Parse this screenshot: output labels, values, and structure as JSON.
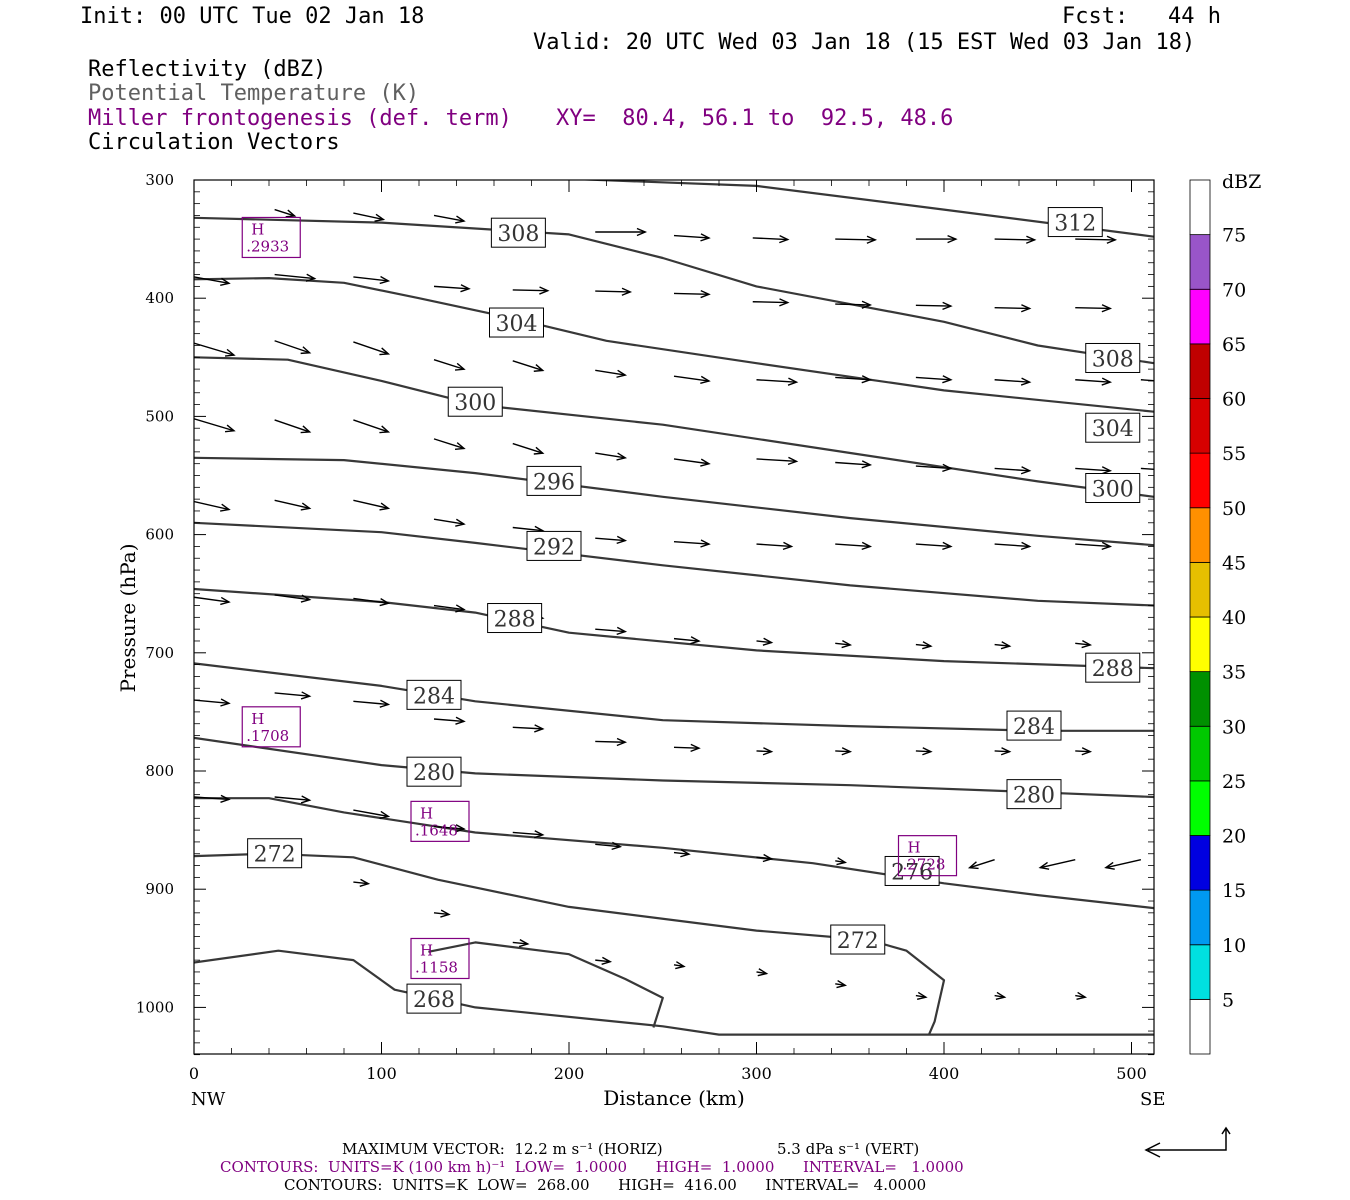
{
  "header": {
    "init": "Init: 00 UTC Tue 02 Jan 18",
    "fcst": "Fcst:   44 h",
    "valid": "Valid: 20 UTC Wed 03 Jan 18 (15 EST Wed 03 Jan 18)"
  },
  "fields": {
    "reflectivity": "Reflectivity (dBZ)",
    "theta": "Potential Temperature (K)",
    "frontogenesis": "Miller frontogenesis (def. term)",
    "xy": "XY=  80.4, 56.1 to  92.5, 48.6",
    "vectors": "Circulation Vectors"
  },
  "colors": {
    "contour": "#383838",
    "purple": "#800080",
    "grey": "#606060"
  },
  "colorbar": {
    "unit": "dBZ",
    "labels": [
      "5",
      "10",
      "15",
      "20",
      "25",
      "30",
      "35",
      "40",
      "45",
      "50",
      "55",
      "60",
      "65",
      "70",
      "75"
    ],
    "colors": [
      "#ffffff",
      "#00e0e0",
      "#0099f0",
      "#0000e0",
      "#00ff00",
      "#00c800",
      "#009000",
      "#ffff00",
      "#e6bf00",
      "#ff9000",
      "#ff0000",
      "#d60000",
      "#c00000",
      "#ff00ff",
      "#9955c9",
      "#ffffff"
    ]
  },
  "chart_data": {
    "type": "line",
    "xlabel": "Distance (km)",
    "ylabel": "Pressure (hPa)",
    "xlim": [
      0,
      512
    ],
    "ylim": [
      1040,
      300
    ],
    "x_ticks": [
      "0",
      "100",
      "200",
      "300",
      "400",
      "500"
    ],
    "y_ticks": [
      "300",
      "400",
      "500",
      "600",
      "700",
      "800",
      "900",
      "1000"
    ],
    "x_end_labels": {
      "left": "NW",
      "right": "SE"
    },
    "series": [
      {
        "value": 312,
        "label": "312",
        "points": [
          [
            100,
            299
          ],
          [
            200,
            299
          ],
          [
            300,
            305
          ],
          [
            400,
            325
          ],
          [
            512,
            348
          ]
        ],
        "label_at": [
          [
            470,
            336
          ]
        ]
      },
      {
        "value": 308,
        "label": "308",
        "points": [
          [
            0,
            332
          ],
          [
            100,
            336
          ],
          [
            200,
            346
          ],
          [
            250,
            366
          ],
          [
            300,
            390
          ],
          [
            400,
            420
          ],
          [
            450,
            440
          ],
          [
            512,
            455
          ]
        ],
        "label_at": [
          [
            173,
            345
          ],
          [
            490,
            451
          ]
        ]
      },
      {
        "value": 304,
        "label": "304",
        "points": [
          [
            0,
            384
          ],
          [
            40,
            383
          ],
          [
            80,
            387
          ],
          [
            120,
            400
          ],
          [
            170,
            417
          ],
          [
            220,
            436
          ],
          [
            300,
            455
          ],
          [
            400,
            478
          ],
          [
            512,
            496
          ]
        ],
        "label_at": [
          [
            172,
            421
          ],
          [
            490,
            510
          ]
        ]
      },
      {
        "value": 300,
        "label": "300",
        "points": [
          [
            0,
            450
          ],
          [
            50,
            452
          ],
          [
            100,
            470
          ],
          [
            150,
            490
          ],
          [
            250,
            507
          ],
          [
            350,
            531
          ],
          [
            450,
            555
          ],
          [
            512,
            568
          ]
        ],
        "label_at": [
          [
            150,
            488
          ],
          [
            490,
            561
          ]
        ]
      },
      {
        "value": 296,
        "label": "296",
        "points": [
          [
            0,
            535
          ],
          [
            80,
            537
          ],
          [
            150,
            548
          ],
          [
            250,
            568
          ],
          [
            350,
            586
          ],
          [
            450,
            601
          ],
          [
            512,
            609
          ]
        ],
        "label_at": [
          [
            192,
            555
          ]
        ]
      },
      {
        "value": 292,
        "label": "292",
        "points": [
          [
            0,
            590
          ],
          [
            100,
            598
          ],
          [
            150,
            607
          ],
          [
            250,
            626
          ],
          [
            350,
            643
          ],
          [
            450,
            656
          ],
          [
            512,
            660
          ]
        ],
        "label_at": [
          [
            192,
            610
          ]
        ]
      },
      {
        "value": 288,
        "label": "288",
        "points": [
          [
            0,
            646
          ],
          [
            100,
            657
          ],
          [
            150,
            666
          ],
          [
            200,
            683
          ],
          [
            300,
            698
          ],
          [
            400,
            707
          ],
          [
            512,
            713
          ]
        ],
        "label_at": [
          [
            171,
            671
          ],
          [
            490,
            713
          ]
        ]
      },
      {
        "value": 284,
        "label": "284",
        "points": [
          [
            0,
            709
          ],
          [
            100,
            728
          ],
          [
            150,
            741
          ],
          [
            250,
            757
          ],
          [
            350,
            762
          ],
          [
            450,
            766
          ],
          [
            512,
            766
          ]
        ],
        "label_at": [
          [
            128,
            736
          ],
          [
            448,
            762
          ]
        ]
      },
      {
        "value": 280,
        "label": "280",
        "points": [
          [
            0,
            772
          ],
          [
            100,
            795
          ],
          [
            150,
            802
          ],
          [
            250,
            808
          ],
          [
            350,
            812
          ],
          [
            450,
            818
          ],
          [
            512,
            822
          ]
        ],
        "label_at": [
          [
            128,
            801
          ],
          [
            448,
            820
          ]
        ]
      },
      {
        "value": 276,
        "label": "276",
        "points": [
          [
            0,
            823
          ],
          [
            40,
            823
          ],
          [
            80,
            835
          ],
          [
            150,
            852
          ],
          [
            250,
            865
          ],
          [
            330,
            878
          ],
          [
            400,
            895
          ],
          [
            450,
            905
          ],
          [
            512,
            916
          ]
        ],
        "label_at": [
          [
            383,
            885
          ]
        ]
      },
      {
        "value": 272,
        "label": "272",
        "points": [
          [
            0,
            872
          ],
          [
            40,
            870
          ],
          [
            85,
            873
          ],
          [
            130,
            892
          ],
          [
            200,
            915
          ],
          [
            300,
            935
          ],
          [
            360,
            943
          ],
          [
            380,
            952
          ],
          [
            400,
            977
          ],
          [
            395,
            1012
          ],
          [
            392,
            1023
          ]
        ],
        "label_at": [
          [
            43,
            870
          ],
          [
            354,
            943
          ]
        ]
      },
      {
        "value": 268,
        "label": "268",
        "points": [
          [
            0,
            962
          ],
          [
            45,
            952
          ],
          [
            85,
            960
          ],
          [
            107,
            985
          ],
          [
            150,
            1000
          ],
          [
            250,
            1016
          ],
          [
            280,
            1023
          ],
          [
            512,
            1023
          ]
        ],
        "label_at": [
          [
            128,
            993
          ]
        ]
      },
      {
        "value": 268,
        "label": "",
        "points": [
          [
            125,
            953
          ],
          [
            150,
            945
          ],
          [
            200,
            955
          ],
          [
            230,
            976
          ],
          [
            250,
            992
          ],
          [
            245,
            1017
          ]
        ],
        "label_at": []
      }
    ],
    "maxima": [
      {
        "label": "H",
        "value": ".2933",
        "x": 30,
        "p": 352
      },
      {
        "label": "H",
        "value": ".1708",
        "x": 30,
        "p": 766
      },
      {
        "label": "H",
        "value": ".1648",
        "x": 120,
        "p": 846
      },
      {
        "label": "H",
        "value": ".2728",
        "x": 380,
        "p": 875
      },
      {
        "label": "H",
        "value": ".1158",
        "x": 120,
        "p": 962
      }
    ],
    "vectors": [
      [
        0,
        334,
        45,
        -3
      ],
      [
        43,
        325,
        -20,
        -8
      ],
      [
        85,
        328,
        -30,
        -8
      ],
      [
        128,
        330,
        -30,
        -7
      ],
      [
        160,
        338,
        -40,
        -4
      ],
      [
        214,
        344,
        -50,
        0
      ],
      [
        256,
        347,
        -35,
        -3
      ],
      [
        298,
        349,
        -35,
        -2
      ],
      [
        342,
        350,
        -40,
        -1
      ],
      [
        385,
        350,
        -40,
        0
      ],
      [
        427,
        350,
        -40,
        -1
      ],
      [
        470,
        350,
        -40,
        -1
      ],
      [
        0,
        382,
        -35,
        -8
      ],
      [
        43,
        380,
        -40,
        -5
      ],
      [
        85,
        382,
        -35,
        -5
      ],
      [
        128,
        390,
        -35,
        -3
      ],
      [
        170,
        393,
        -35,
        -1
      ],
      [
        214,
        394,
        -35,
        -1
      ],
      [
        256,
        396,
        -35,
        -1
      ],
      [
        298,
        403,
        -35,
        -1
      ],
      [
        342,
        405,
        -35,
        -1
      ],
      [
        385,
        406,
        -35,
        -1
      ],
      [
        427,
        408,
        -35,
        -1
      ],
      [
        470,
        408,
        -35,
        -1
      ],
      [
        0,
        438,
        -40,
        -15
      ],
      [
        43,
        436,
        -35,
        -15
      ],
      [
        85,
        437,
        -35,
        -15
      ],
      [
        128,
        452,
        -30,
        -12
      ],
      [
        170,
        453,
        -30,
        -12
      ],
      [
        214,
        461,
        -30,
        -6
      ],
      [
        256,
        466,
        -35,
        -6
      ],
      [
        300,
        469,
        -40,
        -3
      ],
      [
        342,
        467,
        -35,
        -3
      ],
      [
        385,
        467,
        -35,
        -3
      ],
      [
        427,
        469,
        -35,
        -3
      ],
      [
        470,
        469,
        -35,
        -3
      ],
      [
        505,
        469,
        -35,
        -3
      ],
      [
        0,
        502,
        -40,
        -15
      ],
      [
        43,
        503,
        -35,
        -15
      ],
      [
        85,
        503,
        -35,
        -15
      ],
      [
        128,
        519,
        -30,
        -12
      ],
      [
        170,
        523,
        -30,
        -12
      ],
      [
        214,
        531,
        -30,
        -6
      ],
      [
        256,
        536,
        -35,
        -6
      ],
      [
        300,
        536,
        -40,
        -3
      ],
      [
        342,
        539,
        -35,
        -3
      ],
      [
        385,
        542,
        -35,
        -3
      ],
      [
        427,
        544,
        -35,
        -3
      ],
      [
        470,
        544,
        -35,
        -3
      ],
      [
        505,
        544,
        -35,
        -3
      ],
      [
        0,
        572,
        -35,
        -10
      ],
      [
        43,
        571,
        -35,
        -10
      ],
      [
        85,
        571,
        -35,
        -10
      ],
      [
        128,
        587,
        -30,
        -6
      ],
      [
        170,
        594,
        -30,
        -4
      ],
      [
        214,
        603,
        -30,
        -3
      ],
      [
        256,
        606,
        -35,
        -3
      ],
      [
        300,
        608,
        -35,
        -3
      ],
      [
        342,
        608,
        -35,
        -3
      ],
      [
        385,
        608,
        -35,
        -3
      ],
      [
        427,
        608,
        -35,
        -3
      ],
      [
        470,
        608,
        -35,
        -3
      ],
      [
        0,
        653,
        -35,
        -6
      ],
      [
        43,
        651,
        -35,
        -6
      ],
      [
        85,
        654,
        -35,
        -6
      ],
      [
        128,
        660,
        -30,
        -5
      ],
      [
        170,
        668,
        -30,
        -4
      ],
      [
        214,
        680,
        -30,
        -3
      ],
      [
        256,
        688,
        -25,
        -3
      ],
      [
        300,
        690,
        -15,
        -2
      ],
      [
        342,
        692,
        -15,
        -2
      ],
      [
        385,
        693,
        -15,
        -2
      ],
      [
        427,
        693,
        -15,
        -2
      ],
      [
        470,
        692,
        -15,
        -2
      ],
      [
        0,
        740,
        -35,
        -4
      ],
      [
        43,
        734,
        -35,
        -4
      ],
      [
        85,
        741,
        -35,
        -4
      ],
      [
        128,
        756,
        -30,
        -3
      ],
      [
        170,
        763,
        -30,
        -2
      ],
      [
        214,
        775,
        -30,
        -1
      ],
      [
        256,
        780,
        -25,
        -1
      ],
      [
        300,
        783,
        -15,
        -1
      ],
      [
        342,
        783,
        -15,
        -1
      ],
      [
        385,
        783,
        -15,
        -1
      ],
      [
        427,
        783,
        -15,
        -1
      ],
      [
        470,
        783,
        -15,
        -1
      ],
      [
        0,
        822,
        -35,
        -3
      ],
      [
        43,
        822,
        -35,
        -4
      ],
      [
        85,
        833,
        -35,
        -8
      ],
      [
        128,
        847,
        -30,
        -3
      ],
      [
        170,
        852,
        -30,
        -3
      ],
      [
        214,
        862,
        -25,
        -3
      ],
      [
        256,
        869,
        -15,
        -2
      ],
      [
        300,
        873,
        -15,
        -2
      ],
      [
        342,
        876,
        -10,
        -2
      ],
      [
        385,
        874,
        -15,
        -4
      ],
      [
        427,
        875,
        25,
        -10
      ],
      [
        470,
        875,
        35,
        -10
      ],
      [
        505,
        875,
        35,
        -10
      ],
      [
        85,
        894,
        -15,
        -2
      ],
      [
        128,
        920,
        -15,
        -2
      ],
      [
        170,
        945,
        -15,
        -2
      ],
      [
        214,
        960,
        -15,
        -2
      ],
      [
        256,
        964,
        -10,
        -2
      ],
      [
        300,
        970,
        -10,
        -2
      ],
      [
        342,
        980,
        -10,
        -2
      ],
      [
        385,
        990,
        -10,
        -2
      ],
      [
        427,
        990,
        -10,
        -2
      ],
      [
        470,
        990,
        -10,
        -2
      ]
    ]
  },
  "footer": {
    "line1_left": "MAXIMUM VECTOR:  12.2 m s⁻¹ (HORIZ)",
    "line1_right": "5.3 dPa s⁻¹ (VERT)",
    "line2": "CONTOURS:  UNITS=K (100 km h)⁻¹  LOW=  1.0000      HIGH=  1.0000      INTERVAL=   1.0000",
    "line3": "CONTOURS:  UNITS=K  LOW=  268.00      HIGH=  416.00      INTERVAL=   4.0000"
  }
}
